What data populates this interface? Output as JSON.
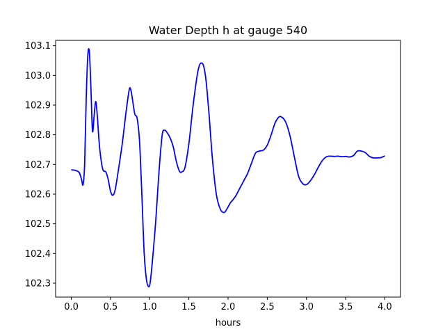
{
  "chart_data": {
    "type": "line",
    "title": "Water Depth h at gauge 540",
    "xlabel": "hours",
    "ylabel": "",
    "xlim": [
      -0.2,
      4.2
    ],
    "ylim": [
      102.253,
      103.118
    ],
    "xticks": [
      0.0,
      0.5,
      1.0,
      1.5,
      2.0,
      2.5,
      3.0,
      3.5,
      4.0
    ],
    "xtick_labels": [
      "0.0",
      "0.5",
      "1.0",
      "1.5",
      "2.0",
      "2.5",
      "3.0",
      "3.5",
      "4.0"
    ],
    "yticks": [
      102.3,
      102.4,
      102.5,
      102.6,
      102.7,
      102.8,
      102.9,
      103.0,
      103.1
    ],
    "ytick_labels": [
      "102.3",
      "102.4",
      "102.5",
      "102.6",
      "102.7",
      "102.8",
      "102.9",
      "103.0",
      "103.1"
    ],
    "grid": false,
    "series": [
      {
        "name": "",
        "color": "#0000ff",
        "x": [
          0.0,
          0.05,
          0.1,
          0.13,
          0.15,
          0.17,
          0.19,
          0.21,
          0.23,
          0.25,
          0.27,
          0.29,
          0.31,
          0.33,
          0.36,
          0.4,
          0.44,
          0.47,
          0.5,
          0.53,
          0.56,
          0.6,
          0.65,
          0.7,
          0.74,
          0.76,
          0.78,
          0.81,
          0.84,
          0.87,
          0.9,
          0.93,
          0.96,
          0.99,
          1.01,
          1.04,
          1.08,
          1.12,
          1.16,
          1.19,
          1.22,
          1.26,
          1.3,
          1.34,
          1.38,
          1.41,
          1.45,
          1.5,
          1.55,
          1.6,
          1.63,
          1.66,
          1.69,
          1.72,
          1.76,
          1.8,
          1.85,
          1.9,
          1.95,
          1.99,
          2.03,
          2.06,
          2.1,
          2.15,
          2.2,
          2.25,
          2.3,
          2.35,
          2.4,
          2.45,
          2.5,
          2.55,
          2.6,
          2.65,
          2.68,
          2.72,
          2.76,
          2.8,
          2.85,
          2.9,
          2.95,
          3.0,
          3.05,
          3.1,
          3.15,
          3.2,
          3.25,
          3.3,
          3.35,
          3.4,
          3.45,
          3.5,
          3.55,
          3.6,
          3.65,
          3.7,
          3.75,
          3.8,
          3.85,
          3.9,
          3.95,
          4.0
        ],
        "y": [
          102.682,
          102.68,
          102.673,
          102.65,
          102.632,
          102.7,
          102.92,
          103.065,
          103.08,
          102.96,
          102.813,
          102.86,
          102.912,
          102.87,
          102.76,
          102.685,
          102.675,
          102.65,
          102.61,
          102.596,
          102.615,
          102.68,
          102.77,
          102.88,
          102.953,
          102.95,
          102.92,
          102.87,
          102.855,
          102.78,
          102.6,
          102.4,
          102.31,
          102.288,
          102.31,
          102.39,
          102.52,
          102.68,
          102.8,
          102.815,
          102.808,
          102.79,
          102.76,
          102.71,
          102.677,
          102.675,
          102.69,
          102.77,
          102.89,
          102.99,
          103.03,
          103.042,
          103.03,
          102.98,
          102.86,
          102.72,
          102.6,
          102.55,
          102.538,
          102.552,
          102.571,
          102.58,
          102.595,
          102.62,
          102.645,
          102.67,
          102.705,
          102.738,
          102.745,
          102.748,
          102.765,
          102.8,
          102.84,
          102.86,
          102.86,
          102.85,
          102.825,
          102.785,
          102.72,
          102.66,
          102.636,
          102.632,
          102.645,
          102.665,
          102.69,
          102.712,
          102.725,
          102.728,
          102.727,
          102.728,
          102.726,
          102.727,
          102.725,
          102.73,
          102.745,
          102.745,
          102.74,
          102.728,
          102.722,
          102.722,
          102.723,
          102.729
        ]
      }
    ]
  }
}
